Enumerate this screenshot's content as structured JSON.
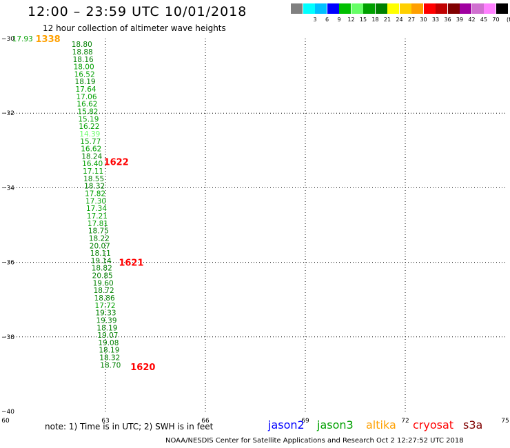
{
  "header": {
    "title": "12:00 – 23:59 UTC 10/01/2018",
    "subtitle": "12 hour collection of altimeter wave heights"
  },
  "color_scale": {
    "unit": "(ft)",
    "swatches": [
      {
        "label": "",
        "color": "#808080"
      },
      {
        "label": "3",
        "color": "#00ffff"
      },
      {
        "label": "6",
        "color": "#00bfff"
      },
      {
        "label": "9",
        "color": "#0000ff"
      },
      {
        "label": "12",
        "color": "#00bf00"
      },
      {
        "label": "15",
        "color": "#66ff66"
      },
      {
        "label": "18",
        "color": "#00a000"
      },
      {
        "label": "21",
        "color": "#008000"
      },
      {
        "label": "24",
        "color": "#ffff00"
      },
      {
        "label": "27",
        "color": "#ffd000"
      },
      {
        "label": "30",
        "color": "#ffa000"
      },
      {
        "label": "33",
        "color": "#ff0000"
      },
      {
        "label": "36",
        "color": "#c00000"
      },
      {
        "label": "39",
        "color": "#800000"
      },
      {
        "label": "42",
        "color": "#a000a0"
      },
      {
        "label": "45",
        "color": "#d070d0"
      },
      {
        "label": "70",
        "color": "#ff80ff"
      },
      {
        "label": "",
        "color": "#000000"
      }
    ]
  },
  "chart_data": {
    "type": "scatter",
    "xlim": [
      60,
      75
    ],
    "ylim": [
      -40,
      -30
    ],
    "x_ticks": [
      60,
      63,
      66,
      69,
      72,
      75
    ],
    "y_ticks": [
      -30,
      -32,
      -34,
      -36,
      -38,
      -40
    ],
    "grid": "dotted",
    "swh_points": [
      {
        "lon": 60.2,
        "lat": -30.0,
        "label": "17.93",
        "color": "#00a000"
      },
      {
        "lon": 61.98,
        "lat": -30.15,
        "label": "18.80",
        "color": "#008000"
      },
      {
        "lon": 62.0,
        "lat": -30.35,
        "label": "18.88",
        "color": "#008000"
      },
      {
        "lon": 62.02,
        "lat": -30.55,
        "label": "18.16",
        "color": "#008000"
      },
      {
        "lon": 62.04,
        "lat": -30.75,
        "label": "18.00",
        "color": "#00a000"
      },
      {
        "lon": 62.06,
        "lat": -30.95,
        "label": "16.52",
        "color": "#00a000"
      },
      {
        "lon": 62.08,
        "lat": -31.15,
        "label": "18.19",
        "color": "#008000"
      },
      {
        "lon": 62.1,
        "lat": -31.35,
        "label": "17.64",
        "color": "#00a000"
      },
      {
        "lon": 62.12,
        "lat": -31.55,
        "label": "17.06",
        "color": "#00a000"
      },
      {
        "lon": 62.14,
        "lat": -31.75,
        "label": "16.62",
        "color": "#00a000"
      },
      {
        "lon": 62.16,
        "lat": -31.95,
        "label": "15.82",
        "color": "#00a000"
      },
      {
        "lon": 62.18,
        "lat": -32.15,
        "label": "15.19",
        "color": "#00a000"
      },
      {
        "lon": 62.2,
        "lat": -32.35,
        "label": "16.22",
        "color": "#00a000"
      },
      {
        "lon": 62.22,
        "lat": -32.55,
        "label": "14.39",
        "color": "#66ff66"
      },
      {
        "lon": 62.24,
        "lat": -32.75,
        "label": "15.77",
        "color": "#00a000"
      },
      {
        "lon": 62.26,
        "lat": -32.95,
        "label": "16.62",
        "color": "#00a000"
      },
      {
        "lon": 62.28,
        "lat": -33.15,
        "label": "18.24",
        "color": "#008000"
      },
      {
        "lon": 62.3,
        "lat": -33.35,
        "label": "16.40",
        "color": "#00a000"
      },
      {
        "lon": 62.32,
        "lat": -33.55,
        "label": "17.11",
        "color": "#00a000"
      },
      {
        "lon": 62.34,
        "lat": -33.75,
        "label": "18.55",
        "color": "#008000"
      },
      {
        "lon": 62.36,
        "lat": -33.95,
        "label": "18.32",
        "color": "#008000"
      },
      {
        "lon": 62.38,
        "lat": -34.15,
        "label": "17.82",
        "color": "#00a000"
      },
      {
        "lon": 62.4,
        "lat": -34.35,
        "label": "17.30",
        "color": "#00a000"
      },
      {
        "lon": 62.42,
        "lat": -34.55,
        "label": "17.34",
        "color": "#00a000"
      },
      {
        "lon": 62.44,
        "lat": -34.75,
        "label": "17.21",
        "color": "#00a000"
      },
      {
        "lon": 62.46,
        "lat": -34.95,
        "label": "17.81",
        "color": "#00a000"
      },
      {
        "lon": 62.48,
        "lat": -35.15,
        "label": "18.75",
        "color": "#008000"
      },
      {
        "lon": 62.5,
        "lat": -35.35,
        "label": "18.22",
        "color": "#008000"
      },
      {
        "lon": 62.52,
        "lat": -35.55,
        "label": "20.07",
        "color": "#008000"
      },
      {
        "lon": 62.54,
        "lat": -35.75,
        "label": "18.11",
        "color": "#008000"
      },
      {
        "lon": 62.56,
        "lat": -35.95,
        "label": "19.14",
        "color": "#008000"
      },
      {
        "lon": 62.58,
        "lat": -36.15,
        "label": "18.82",
        "color": "#008000"
      },
      {
        "lon": 62.6,
        "lat": -36.35,
        "label": "20.85",
        "color": "#008000"
      },
      {
        "lon": 62.62,
        "lat": -36.55,
        "label": "19.60",
        "color": "#008000"
      },
      {
        "lon": 62.64,
        "lat": -36.75,
        "label": "18.72",
        "color": "#008000"
      },
      {
        "lon": 62.66,
        "lat": -36.95,
        "label": "18.86",
        "color": "#008000"
      },
      {
        "lon": 62.68,
        "lat": -37.15,
        "label": "17.72",
        "color": "#00a000"
      },
      {
        "lon": 62.7,
        "lat": -37.35,
        "label": "19.33",
        "color": "#008000"
      },
      {
        "lon": 62.72,
        "lat": -37.55,
        "label": "19.39",
        "color": "#008000"
      },
      {
        "lon": 62.74,
        "lat": -37.75,
        "label": "18.19",
        "color": "#008000"
      },
      {
        "lon": 62.76,
        "lat": -37.95,
        "label": "19.07",
        "color": "#008000"
      },
      {
        "lon": 62.78,
        "lat": -38.15,
        "label": "19.08",
        "color": "#008000"
      },
      {
        "lon": 62.8,
        "lat": -38.35,
        "label": "18.19",
        "color": "#008000"
      },
      {
        "lon": 62.82,
        "lat": -38.55,
        "label": "18.32",
        "color": "#008000"
      },
      {
        "lon": 62.84,
        "lat": -38.75,
        "label": "18.70",
        "color": "#008000"
      }
    ],
    "time_labels": [
      {
        "lon": 60.9,
        "lat": -30.0,
        "label": "1338",
        "color": "#ffa000"
      },
      {
        "lon": 62.95,
        "lat": -33.3,
        "label": "1622",
        "color": "#ff0000"
      },
      {
        "lon": 63.4,
        "lat": -36.0,
        "label": "1621",
        "color": "#ff0000"
      },
      {
        "lon": 63.75,
        "lat": -38.8,
        "label": "1620",
        "color": "#ff0000"
      }
    ]
  },
  "note": "note:  1) Time is in UTC;  2) SWH is in feet",
  "satellite_legend": [
    {
      "name": "jason2",
      "color": "#0000ff"
    },
    {
      "name": "jason3",
      "color": "#00a000"
    },
    {
      "name": "altika",
      "color": "#ffa000"
    },
    {
      "name": "cryosat",
      "color": "#ff0000"
    },
    {
      "name": "s3a",
      "color": "#800000"
    }
  ],
  "footer": "NOAA/NESDIS Center for Satellite Applications and Research     Oct  2 12:27:52 UTC 2018"
}
